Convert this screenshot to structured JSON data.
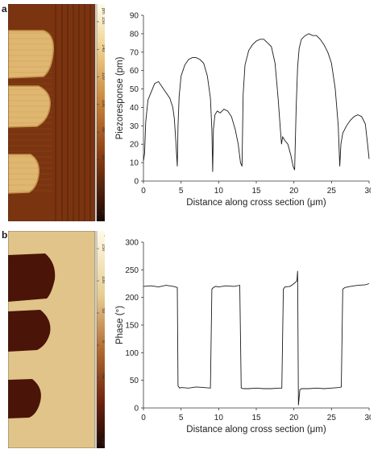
{
  "panels": [
    {
      "letter": "a"
    },
    {
      "letter": "b"
    }
  ],
  "colorbars": {
    "a": {
      "unit": "pm",
      "ticks": [
        "150",
        "140",
        "120",
        "100",
        "80",
        "60",
        "40",
        "20"
      ]
    },
    "b": {
      "unit": "°",
      "ticks": [
        "150",
        "100",
        "50",
        "0",
        "-50",
        "-100",
        "-150"
      ]
    }
  },
  "colors": {
    "a_background": "#7b3410",
    "a_stripe": "#5e2608",
    "a_domain": "#e0b770",
    "a_domain_edge": "#c38f47",
    "b_background": "#e0c489",
    "b_domain": "#4a1408",
    "line": "#1a1a1a"
  },
  "chart_data": [
    {
      "type": "line",
      "title": "",
      "xlabel": "Distance along cross section (μm)",
      "ylabel": "Piezoresponse (pm)",
      "xlim": [
        0,
        30
      ],
      "ylim": [
        0,
        90
      ],
      "xticks": [
        0,
        5,
        10,
        15,
        20,
        25,
        30
      ],
      "yticks": [
        0,
        10,
        20,
        30,
        40,
        50,
        60,
        70,
        80,
        90
      ],
      "grid": false,
      "series": [
        {
          "x": [
            0,
            0.15,
            0.3,
            0.6,
            1.0,
            1.5,
            2.0,
            2.5,
            3.0,
            3.5,
            3.9,
            4.1,
            4.3,
            4.5,
            4.6,
            4.75,
            5.0,
            5.5,
            6.0,
            6.5,
            7.0,
            7.5,
            8.0,
            8.5,
            8.9,
            9.1,
            9.2,
            9.3,
            9.5,
            9.8,
            10.2,
            10.7,
            11.2,
            11.7,
            12.2,
            12.6,
            12.9,
            13.1,
            13.25,
            13.5,
            14.0,
            14.5,
            15.0,
            15.5,
            16.0,
            16.5,
            17.0,
            17.5,
            17.9,
            18.2,
            18.35,
            18.5,
            18.8,
            19.2,
            19.6,
            19.9,
            20.1,
            20.3,
            20.5,
            20.7,
            21.0,
            21.5,
            22.0,
            22.5,
            23.0,
            23.5,
            24.0,
            24.5,
            25.0,
            25.5,
            25.9,
            26.1,
            26.25,
            26.5,
            27.0,
            27.5,
            28.0,
            28.5,
            29.0,
            29.5,
            29.8,
            30.0
          ],
          "values": [
            11,
            15,
            32,
            44,
            48,
            53,
            54,
            51,
            48,
            45,
            40,
            34,
            22,
            8,
            30,
            46,
            57,
            63,
            66,
            67,
            67,
            66,
            64,
            57,
            45,
            28,
            5,
            28,
            36,
            38,
            37,
            39,
            38,
            35,
            28,
            20,
            10,
            8,
            47,
            63,
            71,
            74,
            76,
            77,
            77,
            75,
            73,
            64,
            45,
            28,
            20,
            24,
            22,
            20,
            14,
            8,
            6,
            40,
            62,
            72,
            77,
            79,
            80,
            79,
            79,
            77,
            74,
            70,
            64,
            50,
            30,
            8,
            20,
            26,
            30,
            33,
            35,
            36,
            35,
            31,
            20,
            12
          ]
        }
      ]
    },
    {
      "type": "line",
      "title": "",
      "xlabel": "Distance along cross section (μm)",
      "ylabel": "Phase (°)",
      "xlim": [
        0,
        30
      ],
      "ylim": [
        0,
        300
      ],
      "xticks": [
        0,
        5,
        10,
        15,
        20,
        25,
        30
      ],
      "yticks": [
        0,
        50,
        100,
        150,
        200,
        250,
        300
      ],
      "grid": false,
      "series": [
        {
          "x": [
            0,
            1,
            2,
            3,
            4,
            4.5,
            4.6,
            4.8,
            5,
            6,
            7,
            8,
            8.9,
            9.1,
            9.3,
            9.6,
            10,
            11,
            12,
            12.8,
            13.0,
            13.3,
            14,
            15,
            16,
            17,
            18,
            18.4,
            18.6,
            18.8,
            19.5,
            20,
            20.4,
            20.5,
            20.6,
            20.8,
            21,
            22,
            23,
            24,
            25,
            26,
            26.3,
            26.5,
            26.8,
            27.5,
            28.5,
            29.5,
            30
          ],
          "values": [
            220,
            221,
            219,
            222,
            220,
            218,
            40,
            36,
            37,
            36,
            38,
            37,
            36,
            215,
            218,
            220,
            219,
            221,
            220,
            222,
            36,
            35,
            35,
            36,
            35,
            35,
            36,
            36,
            215,
            219,
            220,
            225,
            230,
            248,
            5,
            33,
            35,
            35,
            36,
            35,
            36,
            37,
            38,
            215,
            218,
            220,
            222,
            223,
            225
          ]
        }
      ]
    }
  ]
}
